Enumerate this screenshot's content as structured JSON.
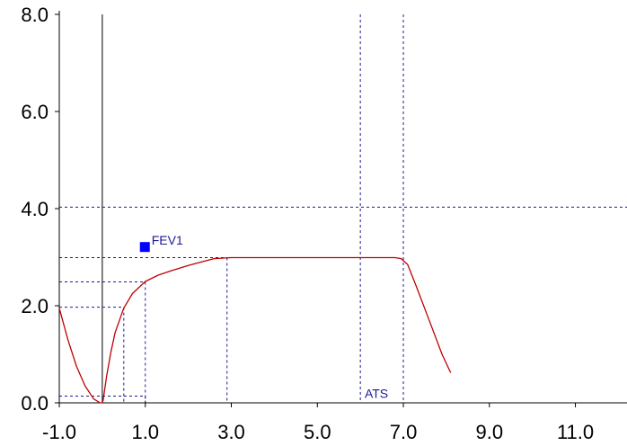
{
  "chart_data": {
    "type": "line",
    "title": "",
    "xlabel": "",
    "ylabel": "",
    "xlim": [
      -1.0,
      12.2
    ],
    "ylim": [
      0.0,
      8.0
    ],
    "x_ticks": [
      -1.0,
      1.0,
      3.0,
      5.0,
      7.0,
      9.0,
      11.0
    ],
    "x_tick_labels": [
      "-1.0",
      "1.0",
      "3.0",
      "5.0",
      "7.0",
      "9.0",
      "11.0"
    ],
    "y_ticks": [
      0.0,
      2.0,
      4.0,
      6.0,
      8.0
    ],
    "y_tick_labels": [
      "0.0",
      "2.0",
      "4.0",
      "6.0",
      "8.0"
    ],
    "grid": false,
    "colors": {
      "curve": "#c00000",
      "reference": "#1a1a9a",
      "marker": "#0000ff",
      "axis": "#000000"
    },
    "series": [
      {
        "x": [
          -1.0,
          -0.8,
          -0.6,
          -0.4,
          -0.2,
          -0.05,
          0.0,
          0.02,
          0.1,
          0.2,
          0.3,
          0.5,
          0.7,
          1.0,
          1.3,
          1.6,
          2.0,
          2.3,
          2.6,
          3.0,
          4.0,
          5.0,
          6.0,
          6.6,
          6.8,
          6.95,
          7.1,
          7.3,
          7.6,
          7.9,
          8.1
        ],
        "y": [
          1.95,
          1.3,
          0.75,
          0.35,
          0.08,
          0.0,
          0.0,
          0.05,
          0.55,
          1.05,
          1.45,
          1.95,
          2.25,
          2.5,
          2.63,
          2.72,
          2.83,
          2.9,
          2.97,
          2.99,
          2.99,
          2.99,
          2.99,
          2.99,
          2.99,
          2.97,
          2.85,
          2.4,
          1.7,
          1.0,
          0.62
        ]
      }
    ],
    "vertical_lines": [
      {
        "x": 0.0,
        "style": "solid"
      },
      {
        "x": 6.0,
        "style": "dashed"
      },
      {
        "x": 7.0,
        "style": "dashed"
      }
    ],
    "horizontal_lines": [
      {
        "y": 4.03,
        "style": "dashed"
      }
    ],
    "drop_lines": [
      {
        "x": 1.0,
        "y": 0.14
      },
      {
        "x": 0.5,
        "y": 1.97
      },
      {
        "x": 1.0,
        "y": 2.49
      },
      {
        "x": 2.9,
        "y": 2.99
      }
    ],
    "annotations": [
      {
        "text": "FEV1",
        "x": 1.0,
        "y": 3.2,
        "marker": "square"
      },
      {
        "text": "ATS",
        "x": 6.1,
        "y": 0.1
      }
    ]
  }
}
